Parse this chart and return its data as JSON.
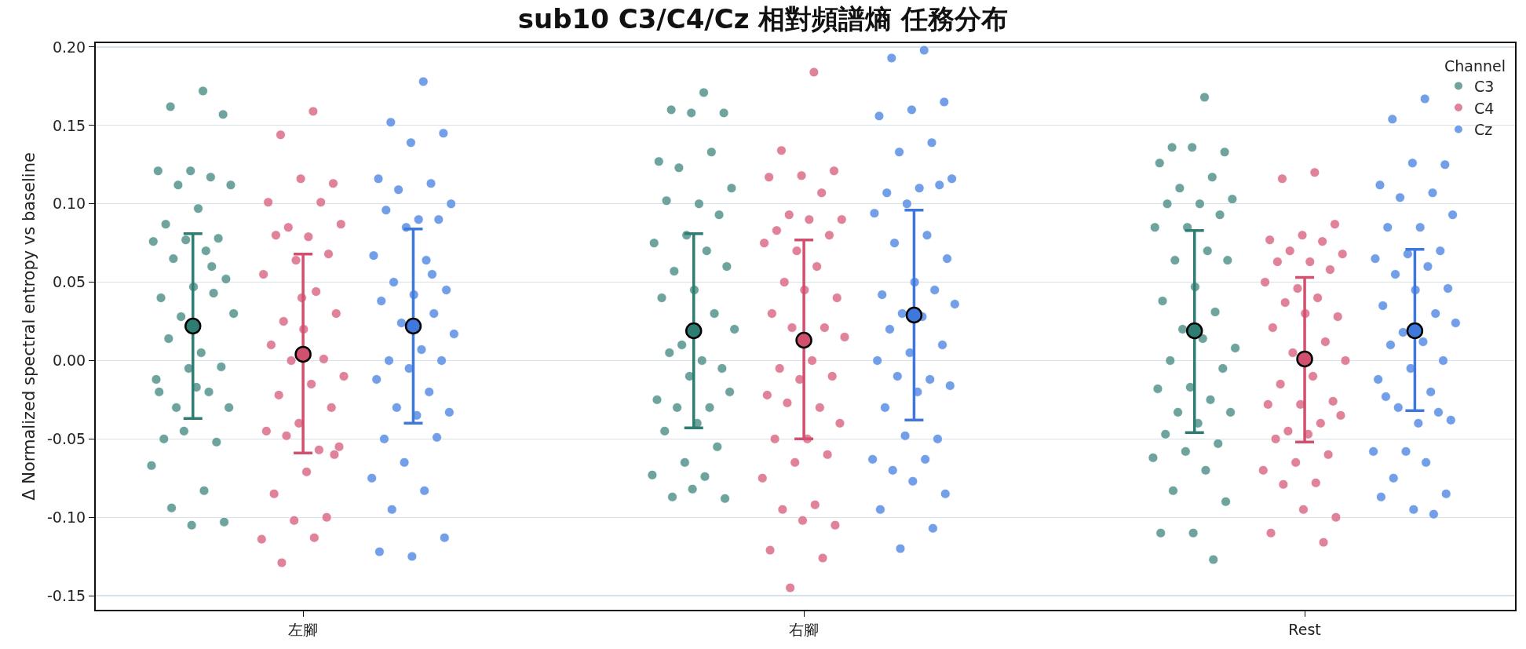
{
  "chart_data": {
    "type": "scatter",
    "title": "sub10 C3/C4/Cz 相對頻譜熵 任務分布",
    "ylabel": "Δ Normalized spectral entropy vs baseline",
    "legend_title": "Channel",
    "legend": "top right",
    "grid": "y",
    "marker": "circle",
    "categories": [
      "左腳",
      "右腳",
      "Rest"
    ],
    "ylim": [
      -0.159,
      0.2025
    ],
    "yticks": [
      {
        "value": -0.15,
        "label": "-0.15"
      },
      {
        "value": -0.1,
        "label": "-0.10"
      },
      {
        "value": -0.05,
        "label": "-0.05"
      },
      {
        "value": 0,
        "label": "0.00"
      },
      {
        "value": 0.05,
        "label": "0.05"
      },
      {
        "value": 0.1,
        "label": "0.10"
      },
      {
        "value": 0.15,
        "label": "0.15"
      },
      {
        "value": 0.2,
        "label": "0.20"
      }
    ],
    "series": [
      {
        "name": "C3",
        "color": "#5f9b93",
        "x": [
          "左腳",
          "左腳",
          "左腳",
          "左腳",
          "左腳",
          "左腳",
          "左腳",
          "左腳",
          "左腳",
          "左腳",
          "左腳",
          "左腳",
          "左腳",
          "左腳",
          "左腳",
          "左腳",
          "左腳",
          "左腳",
          "左腳",
          "左腳",
          "左腳",
          "左腳",
          "左腳",
          "左腳",
          "左腳",
          "左腳",
          "左腳",
          "左腳",
          "左腳",
          "左腳",
          "左腳",
          "左腳",
          "左腳",
          "左腳",
          "左腳",
          "左腳",
          "左腳",
          "左腳",
          "左腳",
          "左腳",
          "右腳",
          "右腳",
          "右腳",
          "右腳",
          "右腳",
          "右腳",
          "右腳",
          "右腳",
          "右腳",
          "右腳",
          "右腳",
          "右腳",
          "右腳",
          "右腳",
          "右腳",
          "右腳",
          "右腳",
          "右腳",
          "右腳",
          "右腳",
          "右腳",
          "右腳",
          "右腳",
          "右腳",
          "右腳",
          "右腳",
          "右腳",
          "右腳",
          "右腳",
          "右腳",
          "右腳",
          "右腳",
          "右腳",
          "右腳",
          "右腳",
          "右腳",
          "右腳",
          "右腳",
          "Rest",
          "Rest",
          "Rest",
          "Rest",
          "Rest",
          "Rest",
          "Rest",
          "Rest",
          "Rest",
          "Rest",
          "Rest",
          "Rest",
          "Rest",
          "Rest",
          "Rest",
          "Rest",
          "Rest",
          "Rest",
          "Rest",
          "Rest",
          "Rest",
          "Rest",
          "Rest",
          "Rest",
          "Rest",
          "Rest",
          "Rest",
          "Rest",
          "Rest",
          "Rest",
          "Rest",
          "Rest",
          "Rest",
          "Rest",
          "Rest",
          "Rest",
          "Rest",
          "Rest",
          "Rest",
          "Rest"
        ],
        "values": [
          0.172,
          0.162,
          0.157,
          0.121,
          0.121,
          0.117,
          0.112,
          0.112,
          0.097,
          0.087,
          0.078,
          0.077,
          0.076,
          0.07,
          0.065,
          0.052,
          0.047,
          0.04,
          0.043,
          0.028,
          0.03,
          0.005,
          0.014,
          -0.004,
          -0.005,
          -0.012,
          -0.02,
          -0.03,
          -0.03,
          -0.017,
          -0.05,
          -0.052,
          -0.045,
          -0.067,
          -0.083,
          -0.094,
          -0.103,
          -0.105,
          -0.02,
          0.06,
          0.171,
          0.16,
          0.158,
          0.158,
          0.127,
          0.133,
          0.123,
          0.11,
          0.1,
          0.102,
          0.093,
          0.08,
          0.075,
          0.07,
          0.057,
          0.06,
          0.045,
          0.04,
          0.03,
          0.01,
          0.02,
          0.0,
          0.005,
          -0.005,
          -0.01,
          -0.025,
          -0.03,
          -0.03,
          -0.02,
          -0.04,
          -0.045,
          -0.055,
          -0.065,
          -0.073,
          -0.074,
          -0.087,
          -0.088,
          -0.082,
          0.168,
          0.136,
          0.133,
          0.136,
          0.126,
          0.117,
          0.11,
          0.103,
          0.1,
          0.1,
          0.093,
          0.085,
          0.085,
          0.07,
          0.064,
          0.064,
          0.047,
          0.038,
          0.031,
          0.02,
          0.008,
          0.014,
          0.0,
          -0.005,
          -0.017,
          -0.018,
          -0.025,
          -0.033,
          -0.033,
          -0.04,
          -0.047,
          -0.053,
          -0.058,
          -0.062,
          -0.07,
          -0.083,
          -0.09,
          -0.11,
          -0.11,
          -0.127
        ]
      },
      {
        "name": "C4",
        "color": "#dc7590",
        "x": [
          "左腳",
          "左腳",
          "左腳",
          "左腳",
          "左腳",
          "左腳",
          "左腳",
          "左腳",
          "左腳",
          "左腳",
          "左腳",
          "左腳",
          "左腳",
          "左腳",
          "左腳",
          "左腳",
          "左腳",
          "左腳",
          "左腳",
          "左腳",
          "左腳",
          "左腳",
          "左腳",
          "左腳",
          "左腳",
          "左腳",
          "左腳",
          "左腳",
          "左腳",
          "左腳",
          "左腳",
          "左腳",
          "左腳",
          "左腳",
          "左腳",
          "左腳",
          "左腳",
          "左腳",
          "右腳",
          "右腳",
          "右腳",
          "右腳",
          "右腳",
          "右腳",
          "右腳",
          "右腳",
          "右腳",
          "右腳",
          "右腳",
          "右腳",
          "右腳",
          "右腳",
          "右腳",
          "右腳",
          "右腳",
          "右腳",
          "右腳",
          "右腳",
          "右腳",
          "右腳",
          "右腳",
          "右腳",
          "右腳",
          "右腳",
          "右腳",
          "右腳",
          "右腳",
          "右腳",
          "右腳",
          "右腳",
          "右腳",
          "右腳",
          "右腳",
          "右腳",
          "右腳",
          "右腳",
          "右腳",
          "右腳",
          "右腳",
          "Rest",
          "Rest",
          "Rest",
          "Rest",
          "Rest",
          "Rest",
          "Rest",
          "Rest",
          "Rest",
          "Rest",
          "Rest",
          "Rest",
          "Rest",
          "Rest",
          "Rest",
          "Rest",
          "Rest",
          "Rest",
          "Rest",
          "Rest",
          "Rest",
          "Rest",
          "Rest",
          "Rest",
          "Rest",
          "Rest",
          "Rest",
          "Rest",
          "Rest",
          "Rest",
          "Rest",
          "Rest",
          "Rest",
          "Rest",
          "Rest",
          "Rest",
          "Rest",
          "Rest",
          "Rest",
          "Rest"
        ],
        "values": [
          0.159,
          0.144,
          0.113,
          0.116,
          0.101,
          0.101,
          0.085,
          0.087,
          0.079,
          0.08,
          0.068,
          0.064,
          0.055,
          0.044,
          0.025,
          0.03,
          0.02,
          0.01,
          0.001,
          0.0,
          -0.01,
          -0.015,
          -0.022,
          -0.03,
          -0.04,
          -0.045,
          -0.057,
          -0.048,
          -0.055,
          -0.071,
          -0.085,
          -0.1,
          -0.102,
          -0.114,
          -0.113,
          -0.129,
          -0.06,
          0.04,
          0.184,
          0.134,
          0.121,
          0.118,
          0.117,
          0.107,
          0.093,
          0.09,
          0.09,
          0.083,
          0.08,
          0.07,
          0.075,
          0.06,
          0.05,
          0.04,
          0.045,
          0.03,
          0.021,
          0.021,
          0.015,
          0.0,
          -0.005,
          -0.01,
          -0.012,
          -0.022,
          -0.03,
          -0.027,
          -0.04,
          -0.05,
          -0.05,
          -0.06,
          -0.065,
          -0.075,
          -0.092,
          -0.095,
          -0.105,
          -0.102,
          -0.121,
          -0.126,
          -0.145,
          0.12,
          0.116,
          0.087,
          0.08,
          0.077,
          0.076,
          0.07,
          0.068,
          0.063,
          0.063,
          0.058,
          0.046,
          0.05,
          0.04,
          0.037,
          0.028,
          0.03,
          0.021,
          0.012,
          0.005,
          0.0,
          -0.01,
          -0.015,
          -0.026,
          -0.028,
          -0.028,
          -0.04,
          -0.045,
          -0.035,
          -0.047,
          -0.05,
          -0.06,
          -0.065,
          -0.07,
          -0.078,
          -0.079,
          -0.1,
          -0.095,
          -0.11,
          -0.116
        ]
      },
      {
        "name": "Cz",
        "color": "#6495e6",
        "x": [
          "左腳",
          "左腳",
          "左腳",
          "左腳",
          "左腳",
          "左腳",
          "左腳",
          "左腳",
          "左腳",
          "左腳",
          "左腳",
          "左腳",
          "左腳",
          "左腳",
          "左腳",
          "左腳",
          "左腳",
          "左腳",
          "左腳",
          "左腳",
          "左腳",
          "左腳",
          "左腳",
          "左腳",
          "左腳",
          "左腳",
          "左腳",
          "左腳",
          "左腳",
          "左腳",
          "左腳",
          "左腳",
          "左腳",
          "左腳",
          "左腳",
          "左腳",
          "左腳",
          "左腳",
          "左腳",
          "左腳",
          "右腳",
          "右腳",
          "右腳",
          "右腳",
          "右腳",
          "右腳",
          "右腳",
          "右腳",
          "右腳",
          "右腳",
          "右腳",
          "右腳",
          "右腳",
          "右腳",
          "右腳",
          "右腳",
          "右腳",
          "右腳",
          "右腳",
          "右腳",
          "右腳",
          "右腳",
          "右腳",
          "右腳",
          "右腳",
          "右腳",
          "右腳",
          "右腳",
          "右腳",
          "右腳",
          "右腳",
          "右腳",
          "右腳",
          "右腳",
          "右腳",
          "右腳",
          "右腳",
          "右腳",
          "右腳",
          "右腳",
          "右腳",
          "Rest",
          "Rest",
          "Rest",
          "Rest",
          "Rest",
          "Rest",
          "Rest",
          "Rest",
          "Rest",
          "Rest",
          "Rest",
          "Rest",
          "Rest",
          "Rest",
          "Rest",
          "Rest",
          "Rest",
          "Rest",
          "Rest",
          "Rest",
          "Rest",
          "Rest",
          "Rest",
          "Rest",
          "Rest",
          "Rest",
          "Rest",
          "Rest",
          "Rest",
          "Rest",
          "Rest",
          "Rest",
          "Rest",
          "Rest",
          "Rest",
          "Rest",
          "Rest",
          "Rest",
          "Rest",
          "Rest"
        ],
        "values": [
          0.178,
          0.152,
          0.145,
          0.139,
          0.116,
          0.113,
          0.109,
          0.1,
          0.09,
          0.096,
          0.09,
          0.085,
          0.067,
          0.064,
          0.05,
          0.045,
          0.042,
          0.038,
          0.03,
          0.024,
          0.017,
          0.007,
          0.0,
          0.0,
          -0.005,
          -0.012,
          -0.02,
          -0.03,
          -0.033,
          -0.035,
          -0.05,
          -0.049,
          -0.065,
          -0.075,
          -0.083,
          -0.095,
          -0.113,
          -0.125,
          -0.122,
          0.055,
          0.198,
          0.193,
          0.165,
          0.16,
          0.156,
          0.139,
          0.133,
          0.116,
          0.11,
          0.107,
          0.112,
          0.1,
          0.094,
          0.08,
          0.075,
          0.065,
          0.05,
          0.042,
          0.045,
          0.03,
          0.036,
          0.028,
          0.02,
          0.01,
          0.005,
          0.0,
          -0.012,
          -0.01,
          -0.016,
          -0.02,
          -0.03,
          -0.05,
          -0.048,
          -0.063,
          -0.063,
          -0.07,
          -0.085,
          -0.077,
          -0.095,
          -0.107,
          -0.12,
          0.167,
          0.154,
          0.125,
          0.126,
          0.112,
          0.107,
          0.104,
          0.093,
          0.085,
          0.085,
          0.07,
          0.068,
          0.065,
          0.06,
          0.055,
          0.046,
          0.045,
          0.035,
          0.03,
          0.018,
          0.024,
          0.012,
          0.01,
          0.0,
          -0.005,
          -0.012,
          -0.02,
          -0.03,
          -0.038,
          -0.04,
          -0.023,
          -0.033,
          -0.058,
          -0.058,
          -0.065,
          -0.075,
          -0.085,
          -0.095,
          -0.087,
          -0.098
        ]
      },
      {
        "color": "#2e7d73",
        "values": [
          0.022,
          0.019,
          0.019
        ],
        "errors": [
          [
            -0.037,
            0.081
          ],
          [
            -0.043,
            0.081
          ],
          [
            -0.046,
            0.083
          ]
        ]
      },
      {
        "color": "#d0506e",
        "values": [
          0.004,
          0.013,
          0.001
        ],
        "errors": [
          [
            -0.059,
            0.068
          ],
          [
            -0.05,
            0.077
          ],
          [
            -0.052,
            0.053
          ]
        ]
      },
      {
        "color": "#3f78dd",
        "values": [
          0.022,
          0.029,
          0.019
        ],
        "errors": [
          [
            -0.04,
            0.084
          ],
          [
            -0.038,
            0.096
          ],
          [
            -0.032,
            0.071
          ]
        ]
      }
    ]
  }
}
